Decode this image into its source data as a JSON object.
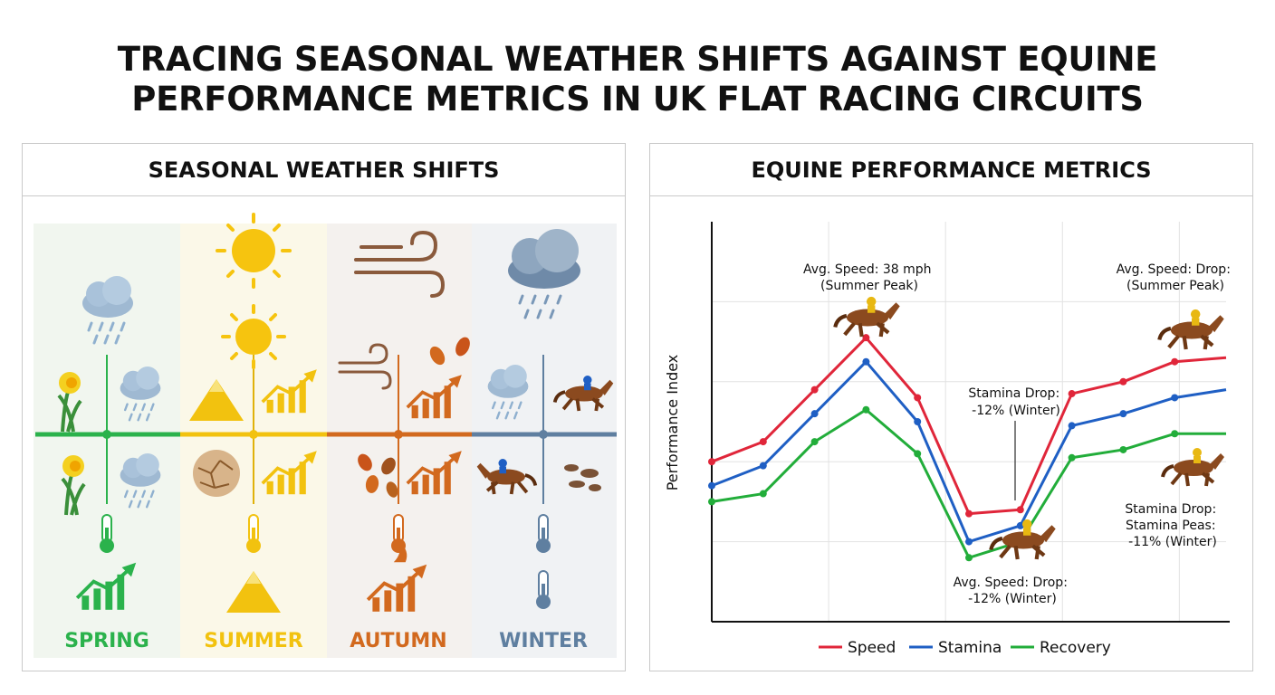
{
  "title": {
    "line1": "TRACING SEASONAL WEATHER SHIFTS AGAINST EQUINE",
    "line2": "PERFORMANCE METRICS IN UK FLAT RACING CIRCUITS"
  },
  "left_panel": {
    "heading": "SEASONAL WEATHER SHIFTS",
    "seasons": [
      {
        "label": "SPRING",
        "color": "#2bb24c",
        "bg": "#f1f6ef"
      },
      {
        "label": "SUMMER",
        "color": "#f2c20f",
        "bg": "#fbf8e8"
      },
      {
        "label": "AUTUMN",
        "color": "#d2691e",
        "bg": "#f4f1ee"
      },
      {
        "label": "WINTER",
        "color": "#5f7fa0",
        "bg": "#f0f2f4"
      }
    ],
    "icons": {
      "spring": [
        "rain-cloud-icon",
        "daffodil-icon",
        "rain-cloud-icon",
        "daffodil-icon",
        "rain-cloud-icon",
        "thermometer-icon",
        "rising-chart-icon"
      ],
      "summer": [
        "sun-icon",
        "sun-icon",
        "mountain-icon",
        "rising-chart-icon",
        "cracked-earth-icon",
        "rising-chart-icon",
        "thermometer-icon",
        "mountain-icon"
      ],
      "autumn": [
        "wind-icon",
        "wind-icon",
        "leaves-icon",
        "rising-chart-icon",
        "leaves-icon",
        "rising-chart-icon",
        "thermometer-icon",
        "flame-chart-icon"
      ],
      "winter": [
        "storm-cloud-icon",
        "rain-cloud-icon",
        "racehorse-icon",
        "racehorse-icon",
        "mud-icon",
        "thermometer-icon",
        "thermometer-icon"
      ]
    }
  },
  "right_panel": {
    "heading": "EQUINE PERFORMANCE METRICS"
  },
  "chart_data": {
    "type": "line",
    "title": "EQUINE PERFORMANCE METRICS",
    "xlabel": "",
    "ylabel": "Performance Index",
    "grid": true,
    "legend_position": "bottom",
    "x": [
      0,
      1,
      2,
      3,
      4,
      5,
      6,
      7,
      8,
      9,
      10
    ],
    "ylim": [
      0,
      100
    ],
    "series": [
      {
        "name": "Speed",
        "color": "#e0263a",
        "values": [
          40,
          45,
          58,
          71,
          56,
          27,
          28,
          57,
          60,
          65,
          66
        ]
      },
      {
        "name": "Stamina",
        "color": "#1f5fc4",
        "values": [
          34,
          39,
          52,
          65,
          50,
          20,
          24,
          49,
          52,
          56,
          58
        ]
      },
      {
        "name": "Recovery",
        "color": "#22ad3a",
        "values": [
          30,
          32,
          45,
          53,
          42,
          16,
          20,
          41,
          43,
          47,
          47
        ]
      }
    ],
    "annotations": [
      {
        "lines": [
          "Avg. Speed: 38 mph",
          "(Summer Peak)"
        ]
      },
      {
        "lines": [
          "Avg. Speed: Drop:",
          "(Summer Peak)"
        ]
      },
      {
        "lines": [
          "Stamina Drop:",
          "-12% (Winter)"
        ]
      },
      {
        "lines": [
          "Stamina Drop:",
          "Stamina Peas:",
          "-11% (Winter)"
        ]
      },
      {
        "lines": [
          "Avg. Speed: Drop:",
          "-12% (Winter)"
        ]
      }
    ]
  }
}
